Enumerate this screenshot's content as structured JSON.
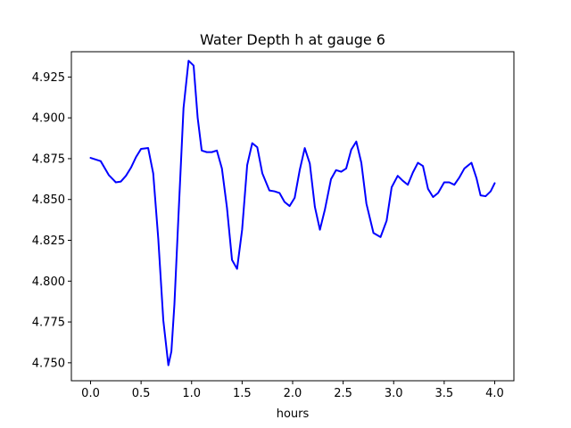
{
  "chart_data": {
    "type": "line",
    "title": "Water Depth h at gauge 6",
    "xlabel": "hours",
    "ylabel": "",
    "xlim": [
      -0.19,
      4.19
    ],
    "ylim": [
      4.739,
      4.9405
    ],
    "xticks": [
      0.0,
      0.5,
      1.0,
      1.5,
      2.0,
      2.5,
      3.0,
      3.5,
      4.0
    ],
    "xtick_labels": [
      "0.0",
      "0.5",
      "1.0",
      "1.5",
      "2.0",
      "2.5",
      "3.0",
      "3.5",
      "4.0"
    ],
    "yticks": [
      4.75,
      4.775,
      4.8,
      4.825,
      4.85,
      4.875,
      4.9,
      4.925
    ],
    "ytick_labels": [
      "4.750",
      "4.775",
      "4.800",
      "4.825",
      "4.850",
      "4.875",
      "4.900",
      "4.925"
    ],
    "grid": false,
    "series": [
      {
        "color": "#0000ff",
        "x": [
          0.0,
          0.1,
          0.18,
          0.25,
          0.3,
          0.35,
          0.4,
          0.45,
          0.5,
          0.57,
          0.62,
          0.67,
          0.72,
          0.77,
          0.8,
          0.83,
          0.87,
          0.92,
          0.97,
          1.02,
          1.06,
          1.1,
          1.15,
          1.2,
          1.25,
          1.3,
          1.35,
          1.4,
          1.45,
          1.5,
          1.55,
          1.6,
          1.65,
          1.7,
          1.77,
          1.82,
          1.87,
          1.92,
          1.97,
          2.02,
          2.07,
          2.12,
          2.17,
          2.22,
          2.27,
          2.32,
          2.38,
          2.43,
          2.48,
          2.53,
          2.58,
          2.63,
          2.68,
          2.73,
          2.8,
          2.87,
          2.93,
          2.98,
          3.04,
          3.09,
          3.14,
          3.19,
          3.24,
          3.29,
          3.34,
          3.39,
          3.44,
          3.5,
          3.55,
          3.6,
          3.65,
          3.7,
          3.77,
          3.82,
          3.86,
          3.91,
          3.96,
          4.0
        ],
        "y": [
          4.8755,
          4.8735,
          4.865,
          4.8605,
          4.861,
          4.8645,
          4.8695,
          4.876,
          4.881,
          4.8815,
          4.866,
          4.826,
          4.776,
          4.7485,
          4.757,
          4.786,
          4.84,
          4.906,
          4.935,
          4.932,
          4.9,
          4.88,
          4.879,
          4.879,
          4.88,
          4.869,
          4.845,
          4.813,
          4.8075,
          4.8315,
          4.871,
          4.8845,
          4.882,
          4.866,
          4.8555,
          4.855,
          4.854,
          4.8485,
          4.846,
          4.851,
          4.868,
          4.8815,
          4.872,
          4.8455,
          4.8315,
          4.844,
          4.8625,
          4.868,
          4.867,
          4.869,
          4.8805,
          4.8855,
          4.8725,
          4.8475,
          4.8295,
          4.827,
          4.837,
          4.8575,
          4.8645,
          4.8615,
          4.859,
          4.8665,
          4.8725,
          4.8705,
          4.8565,
          4.8515,
          4.854,
          4.8605,
          4.8605,
          4.859,
          4.8635,
          4.869,
          4.8725,
          4.863,
          4.8525,
          4.852,
          4.855,
          4.86
        ]
      }
    ]
  }
}
